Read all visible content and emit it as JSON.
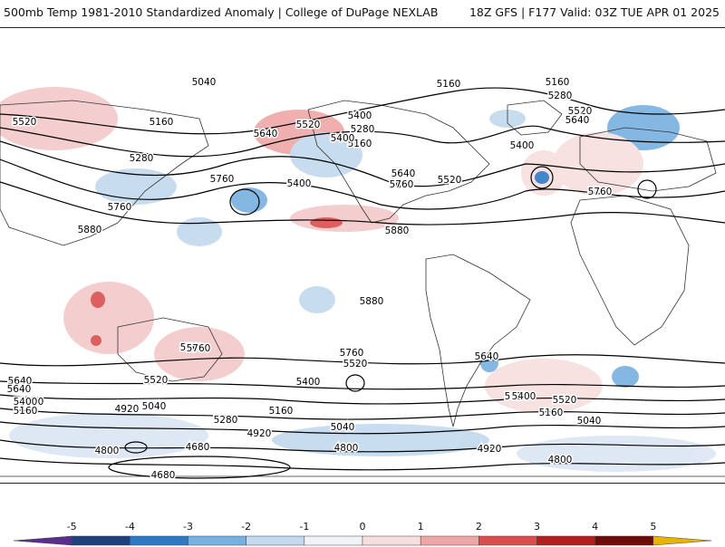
{
  "header": {
    "title": "500mb Temp 1981-2010 Standardized Anomaly | College of DuPage NEXLAB",
    "run": "18Z GFS | F177 Valid: 03Z TUE APR 01 2025"
  },
  "contour_labels": [
    "5040",
    "5160",
    "5160",
    "5280",
    "5520",
    "5160",
    "5520",
    "5640",
    "5520",
    "5400",
    "5280",
    "5160",
    "5640",
    "5400",
    "5640",
    "5280",
    "5400",
    "5760",
    "5400",
    "5640",
    "5760",
    "5520",
    "5400",
    "5880",
    "5760",
    "5880",
    "5760",
    "5880",
    "5760",
    "5640",
    "5760",
    "5520",
    "5640",
    "5520",
    "5400",
    "5640",
    "5640",
    "5400",
    "5520",
    "5280",
    "5160",
    "5040",
    "5520",
    "4920",
    "5040",
    "5280",
    "5160",
    "5040",
    "4920",
    "4800",
    "4800",
    "4680",
    "4680",
    "4920",
    "4800",
    "5760",
    "5400",
    "5160"
  ],
  "colorbar": {
    "ticks": [
      "-5",
      "-4",
      "-3",
      "-2",
      "-1",
      "0",
      "1",
      "2",
      "3",
      "4",
      "5"
    ],
    "colors": [
      "#5b2d8f",
      "#1f3f7a",
      "#2f79c4",
      "#78b0e0",
      "#c3d9ef",
      "#eef3f8",
      "#f7dede",
      "#eea7a7",
      "#d94f4f",
      "#b11f1f",
      "#6e0b0b",
      "#e8b400"
    ]
  }
}
